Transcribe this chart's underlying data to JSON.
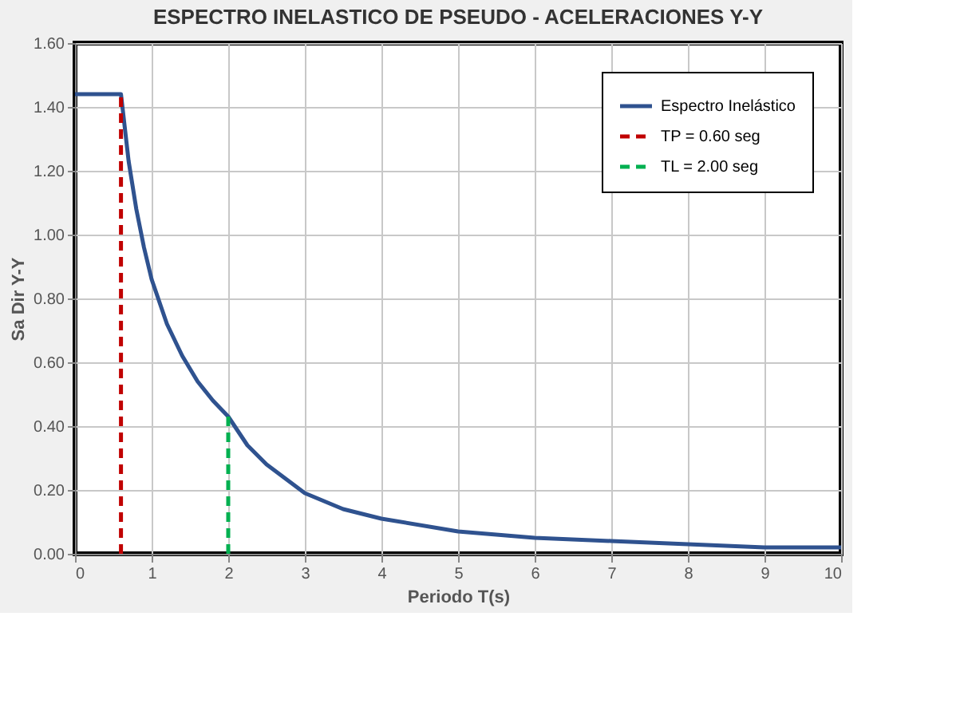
{
  "chart_data": {
    "type": "line",
    "title": "ESPECTRO INELASTICO DE PSEUDO - ACELERACIONES Y-Y",
    "xlabel": "Periodo T(s)",
    "ylabel": "Sa Dir Y-Y",
    "series": [
      {
        "name": "Espectro Inelástico",
        "color": "#2f528f",
        "line_style": "solid",
        "x": [
          0,
          0.6,
          0.7,
          0.8,
          0.9,
          1.0,
          1.2,
          1.4,
          1.6,
          1.8,
          2.0,
          2.25,
          2.5,
          3,
          3.5,
          4,
          5,
          6,
          7,
          8,
          9,
          10
        ],
        "values": [
          1.44,
          1.44,
          1.23,
          1.08,
          0.96,
          0.86,
          0.72,
          0.62,
          0.54,
          0.48,
          0.43,
          0.34,
          0.28,
          0.19,
          0.14,
          0.11,
          0.07,
          0.05,
          0.04,
          0.03,
          0.02,
          0.02
        ]
      },
      {
        "name": "TP = 0.60 seg",
        "color": "#c00000",
        "line_style": "dashed",
        "x": [
          0.6,
          0.6
        ],
        "values": [
          0,
          1.44
        ]
      },
      {
        "name": "TL = 2.00 seg",
        "color": "#00b050",
        "line_style": "dashed",
        "x": [
          2.0,
          2.0
        ],
        "values": [
          0,
          0.43
        ]
      }
    ],
    "xlim": [
      0,
      10
    ],
    "xticks": [
      0,
      1,
      2,
      3,
      4,
      5,
      6,
      7,
      8,
      9,
      10
    ],
    "ylim": [
      0,
      1.6
    ],
    "yticks": [
      {
        "value": 0,
        "label": "0.00"
      },
      {
        "value": 0.2,
        "label": "0.20"
      },
      {
        "value": 0.4,
        "label": "0.40"
      },
      {
        "value": 0.6,
        "label": "0.60"
      },
      {
        "value": 0.8,
        "label": "0.80"
      },
      {
        "value": 1.0,
        "label": "1.00"
      },
      {
        "value": 1.2,
        "label": "1.20"
      },
      {
        "value": 1.4,
        "label": "1.40"
      },
      {
        "value": 1.6,
        "label": "1.60"
      }
    ],
    "grid": true,
    "legend": "top right"
  }
}
